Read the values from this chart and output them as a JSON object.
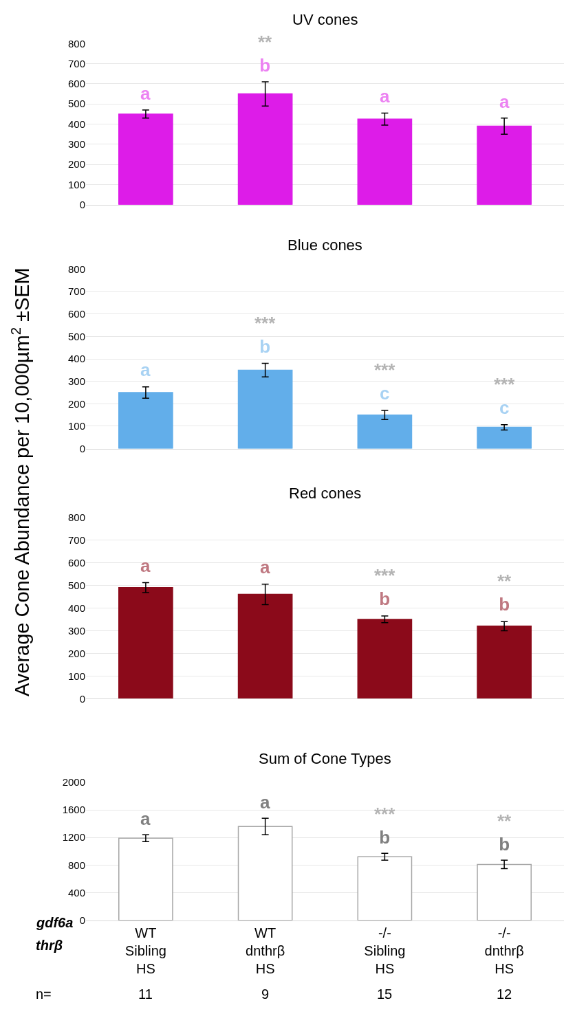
{
  "chart_data": [
    {
      "type": "bar",
      "title": "UV cones",
      "ylabel": "Average Cone Abundance per 10,000µm$^{2}$ ±SEM",
      "categories": [
        null,
        null,
        null,
        null
      ],
      "values": [
        450,
        550,
        425,
        390
      ],
      "errors": [
        20,
        60,
        30,
        40
      ],
      "color": "#dd1ce8",
      "ylim": [
        0,
        800
      ],
      "yticks": [
        0,
        100,
        200,
        300,
        400,
        500,
        600,
        700,
        800
      ],
      "grid": "y",
      "legend": false,
      "tick_labels": "y",
      "value_labels": [
        "a",
        "**\nb",
        "a",
        "a"
      ]
    },
    {
      "type": "bar",
      "title": "Blue cones",
      "categories": [
        null,
        null,
        null,
        null
      ],
      "values": [
        250,
        350,
        150,
        95
      ],
      "errors": [
        25,
        30,
        20,
        12
      ],
      "color": "#62aeea",
      "ylim": [
        0,
        800
      ],
      "yticks": [
        0,
        100,
        200,
        300,
        400,
        500,
        600,
        700,
        800
      ],
      "grid": "y",
      "legend": false,
      "tick_labels": "y",
      "value_labels": [
        "a",
        "***\nb",
        "***\nc",
        "***\nc"
      ]
    },
    {
      "type": "bar",
      "title": "Red cones",
      "categories": [
        null,
        null,
        null,
        null
      ],
      "values": [
        490,
        460,
        350,
        320
      ],
      "errors": [
        22,
        45,
        15,
        20
      ],
      "color": "#8b0a1a",
      "ylim": [
        0,
        800
      ],
      "yticks": [
        0,
        100,
        200,
        300,
        400,
        500,
        600,
        700,
        800
      ],
      "grid": "y",
      "legend": false,
      "tick_labels": "y",
      "value_labels": [
        "a",
        "a",
        "***\nb",
        "**\nb"
      ]
    },
    {
      "type": "bar",
      "title": "Sum of Cone Types",
      "categories": [
        "WT\nSibling\nHS",
        "WT\ndnthrβ\nHS",
        "-/-\nSibling\nHS",
        "-/-\ndnthrβ\nHS"
      ],
      "values": [
        1190,
        1360,
        920,
        810
      ],
      "errors": [
        50,
        120,
        50,
        60
      ],
      "color": "#ffffff",
      "ylim": [
        0,
        2000
      ],
      "yticks": [
        0,
        400,
        800,
        1200,
        1600,
        2000
      ],
      "grid": "y",
      "legend": false,
      "value_labels": [
        "a",
        "a",
        "***\nb",
        "**\nb"
      ],
      "annotations": [
        "gdf6a",
        "thrβ",
        "n=",
        "11",
        "9",
        "15",
        "12"
      ]
    }
  ]
}
